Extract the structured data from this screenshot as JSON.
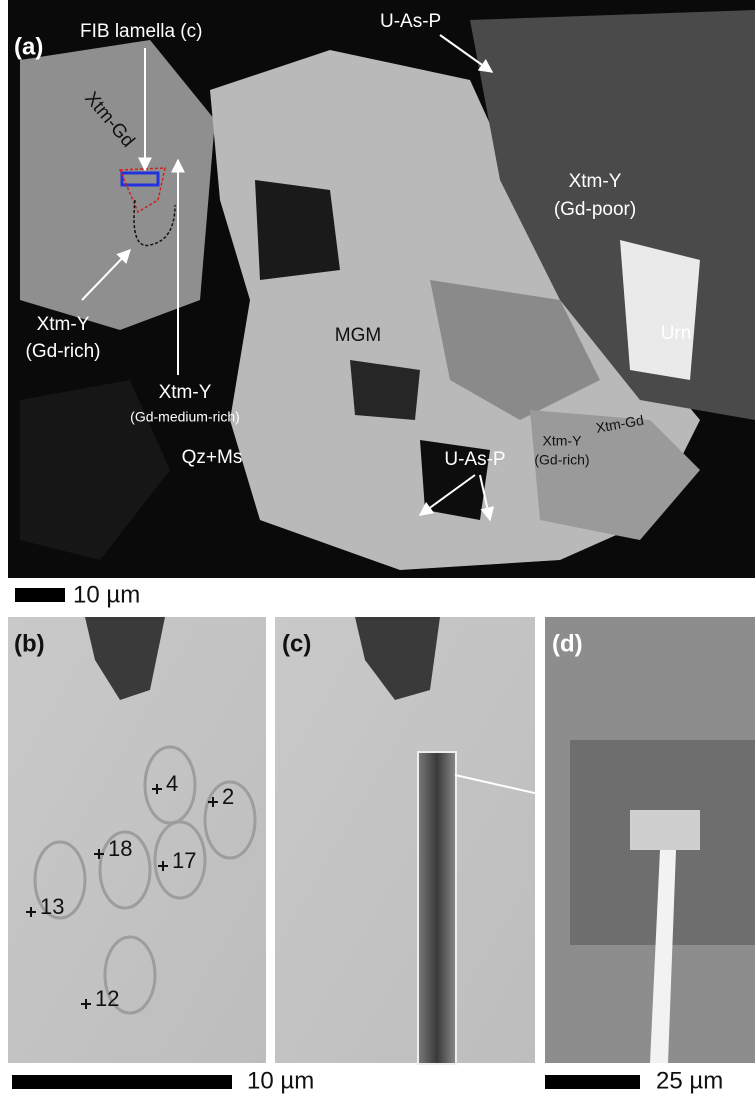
{
  "panels": [
    {
      "label": "(a)",
      "scale_bar": "10 µm",
      "annotations": [
        "FIB lamella (c)",
        "U-As-P",
        "Xtm-Gd",
        "Xtm-Y",
        "(Gd-poor)",
        "Xtm-Y",
        "(Gd-rich)",
        "Xtm-Y",
        "(Gd-medium-rich)",
        "MGM",
        "Urn",
        "Qz+Ms",
        "U-As-P",
        "Xtm-Gd",
        "Xtm-Y",
        "(Gd-rich)"
      ]
    },
    {
      "label": "(b)",
      "spots": [
        4,
        2,
        18,
        13,
        17,
        12
      ]
    },
    {
      "label": "(c)"
    },
    {
      "label": "(d)"
    }
  ],
  "scale_bars": [
    "10 µm",
    "25 µm"
  ]
}
